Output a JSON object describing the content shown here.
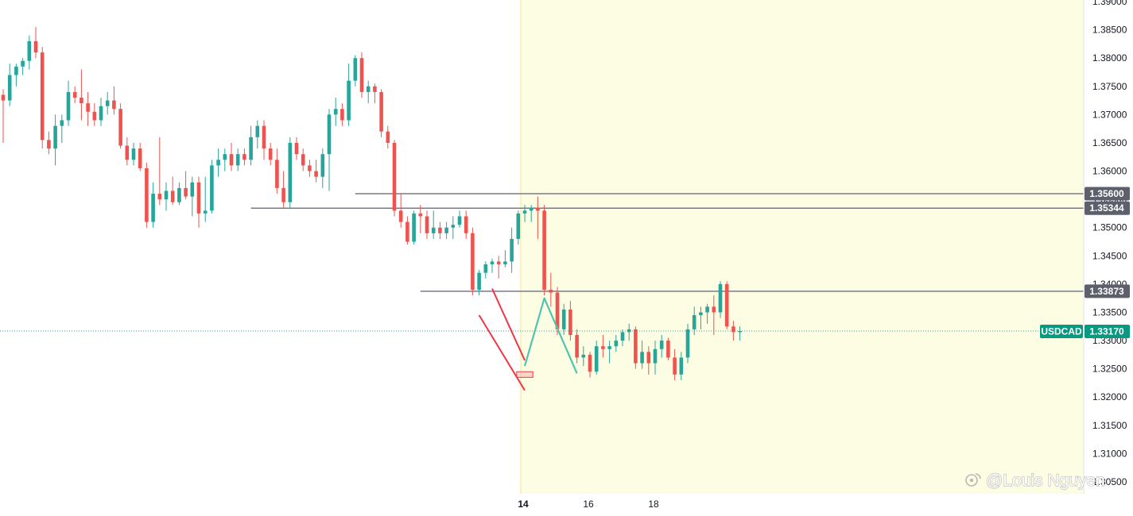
{
  "chart_data": {
    "type": "candlestick",
    "symbol": "USDCAD",
    "last_price": "1.33170",
    "ylim": [
      1.305,
      1.39
    ],
    "price_ticks": [
      "1.39000",
      "1.38500",
      "1.38000",
      "1.37500",
      "1.37000",
      "1.36500",
      "1.36000",
      "1.35500",
      "1.35000",
      "1.34500",
      "1.34000",
      "1.33500",
      "1.33000",
      "1.32500",
      "1.32000",
      "1.31500",
      "1.31000",
      "1.30500"
    ],
    "time_labels": [
      {
        "label": "14",
        "index": 80
      },
      {
        "label": "16",
        "index": 90
      },
      {
        "label": "18",
        "index": 100
      }
    ],
    "levels": [
      {
        "label": "1.35600",
        "value": 1.356,
        "start_index": 54
      },
      {
        "label": "1.35344",
        "value": 1.35344,
        "start_index": 38
      },
      {
        "label": "1.33873",
        "value": 1.33873,
        "start_index": 64
      }
    ],
    "session_start_index": 80,
    "projection_path": [
      {
        "index": 80,
        "value": 1.3255
      },
      {
        "index": 83,
        "value": 1.3375
      },
      {
        "index": 88,
        "value": 1.3242
      }
    ],
    "channel": {
      "upper": [
        {
          "index": 75,
          "value": 1.3392
        },
        {
          "index": 80,
          "value": 1.3265
        }
      ],
      "lower": [
        {
          "index": 73,
          "value": 1.3345
        },
        {
          "index": 80,
          "value": 1.3212
        }
      ]
    },
    "highlight_box": {
      "start_index": 79,
      "end_index": 81,
      "high": 1.3245,
      "low": 1.3235
    },
    "candles": [
      [
        1.3735,
        1.3745,
        1.365,
        1.3725
      ],
      [
        1.3725,
        1.379,
        1.3715,
        1.377
      ],
      [
        1.377,
        1.379,
        1.375,
        1.3785
      ],
      [
        1.3785,
        1.38,
        1.377,
        1.3795
      ],
      [
        1.3795,
        1.384,
        1.378,
        1.383
      ],
      [
        1.383,
        1.3855,
        1.38,
        1.381
      ],
      [
        1.381,
        1.382,
        1.364,
        1.3655
      ],
      [
        1.3655,
        1.367,
        1.363,
        1.364
      ],
      [
        1.364,
        1.37,
        1.361,
        1.368
      ],
      [
        1.368,
        1.37,
        1.365,
        1.369
      ],
      [
        1.369,
        1.376,
        1.368,
        1.374
      ],
      [
        1.374,
        1.375,
        1.372,
        1.373
      ],
      [
        1.373,
        1.378,
        1.369,
        1.372
      ],
      [
        1.372,
        1.374,
        1.368,
        1.3705
      ],
      [
        1.3705,
        1.372,
        1.368,
        1.369
      ],
      [
        1.369,
        1.373,
        1.368,
        1.3715
      ],
      [
        1.3715,
        1.374,
        1.37,
        1.3725
      ],
      [
        1.3725,
        1.375,
        1.37,
        1.371
      ],
      [
        1.371,
        1.372,
        1.364,
        1.3645
      ],
      [
        1.3645,
        1.366,
        1.361,
        1.362
      ],
      [
        1.362,
        1.365,
        1.361,
        1.364
      ],
      [
        1.364,
        1.365,
        1.36,
        1.3605
      ],
      [
        1.3605,
        1.3615,
        1.35,
        1.351
      ],
      [
        1.351,
        1.358,
        1.35,
        1.356
      ],
      [
        1.356,
        1.366,
        1.354,
        1.355
      ],
      [
        1.355,
        1.358,
        1.353,
        1.3565
      ],
      [
        1.3565,
        1.359,
        1.354,
        1.3545
      ],
      [
        1.3545,
        1.358,
        1.354,
        1.357
      ],
      [
        1.357,
        1.36,
        1.355,
        1.3555
      ],
      [
        1.3555,
        1.359,
        1.352,
        1.358
      ],
      [
        1.358,
        1.359,
        1.35,
        1.3525
      ],
      [
        1.3525,
        1.359,
        1.351,
        1.353
      ],
      [
        1.353,
        1.362,
        1.3525,
        1.361
      ],
      [
        1.361,
        1.364,
        1.359,
        1.362
      ],
      [
        1.362,
        1.364,
        1.36,
        1.363
      ],
      [
        1.363,
        1.365,
        1.36,
        1.361
      ],
      [
        1.361,
        1.364,
        1.36,
        1.363
      ],
      [
        1.363,
        1.364,
        1.361,
        1.362
      ],
      [
        1.362,
        1.368,
        1.361,
        1.366
      ],
      [
        1.366,
        1.369,
        1.364,
        1.368
      ],
      [
        1.368,
        1.369,
        1.362,
        1.364
      ],
      [
        1.364,
        1.365,
        1.361,
        1.362
      ],
      [
        1.362,
        1.364,
        1.356,
        1.357
      ],
      [
        1.357,
        1.36,
        1.3535,
        1.3545
      ],
      [
        1.3545,
        1.366,
        1.3535,
        1.365
      ],
      [
        1.365,
        1.366,
        1.362,
        1.363
      ],
      [
        1.363,
        1.364,
        1.36,
        1.361
      ],
      [
        1.361,
        1.362,
        1.359,
        1.36
      ],
      [
        1.36,
        1.362,
        1.358,
        1.359
      ],
      [
        1.359,
        1.364,
        1.357,
        1.363
      ],
      [
        1.363,
        1.371,
        1.3565,
        1.37
      ],
      [
        1.37,
        1.373,
        1.368,
        1.371
      ],
      [
        1.371,
        1.372,
        1.368,
        1.369
      ],
      [
        1.369,
        1.379,
        1.368,
        1.376
      ],
      [
        1.376,
        1.3805,
        1.375,
        1.38
      ],
      [
        1.38,
        1.381,
        1.373,
        1.374
      ],
      [
        1.374,
        1.376,
        1.372,
        1.375
      ],
      [
        1.375,
        1.3755,
        1.372,
        1.374
      ],
      [
        1.374,
        1.3745,
        1.366,
        1.367
      ],
      [
        1.367,
        1.368,
        1.364,
        1.365
      ],
      [
        1.365,
        1.3655,
        1.352,
        1.353
      ],
      [
        1.353,
        1.356,
        1.35,
        1.351
      ],
      [
        1.351,
        1.352,
        1.347,
        1.3475
      ],
      [
        1.3475,
        1.353,
        1.347,
        1.3525
      ],
      [
        1.3525,
        1.354,
        1.349,
        1.352
      ],
      [
        1.352,
        1.353,
        1.348,
        1.349
      ],
      [
        1.349,
        1.353,
        1.348,
        1.35
      ],
      [
        1.35,
        1.351,
        1.348,
        1.349
      ],
      [
        1.349,
        1.351,
        1.348,
        1.35
      ],
      [
        1.35,
        1.352,
        1.348,
        1.3505
      ],
      [
        1.3505,
        1.353,
        1.35,
        1.352
      ],
      [
        1.352,
        1.353,
        1.348,
        1.349
      ],
      [
        1.349,
        1.35,
        1.338,
        1.339
      ],
      [
        1.339,
        1.3425,
        1.338,
        1.342
      ],
      [
        1.342,
        1.344,
        1.341,
        1.3435
      ],
      [
        1.3435,
        1.3445,
        1.342,
        1.344
      ],
      [
        1.344,
        1.345,
        1.341,
        1.3435
      ],
      [
        1.3435,
        1.346,
        1.343,
        1.344
      ],
      [
        1.344,
        1.35,
        1.342,
        1.348
      ],
      [
        1.348,
        1.353,
        1.347,
        1.3525
      ],
      [
        1.3525,
        1.354,
        1.351,
        1.353
      ],
      [
        1.353,
        1.354,
        1.351,
        1.3535
      ],
      [
        1.3535,
        1.3555,
        1.348,
        1.353
      ],
      [
        1.353,
        1.354,
        1.338,
        1.339
      ],
      [
        1.339,
        1.342,
        1.336,
        1.3385
      ],
      [
        1.3385,
        1.3395,
        1.331,
        1.332
      ],
      [
        1.332,
        1.3365,
        1.331,
        1.3355
      ],
      [
        1.3355,
        1.337,
        1.33,
        1.331
      ],
      [
        1.331,
        1.332,
        1.326,
        1.327
      ],
      [
        1.327,
        1.329,
        1.3255,
        1.3275
      ],
      [
        1.3275,
        1.328,
        1.3235,
        1.3245
      ],
      [
        1.3245,
        1.33,
        1.324,
        1.329
      ],
      [
        1.329,
        1.331,
        1.327,
        1.3285
      ],
      [
        1.3285,
        1.33,
        1.326,
        1.329
      ],
      [
        1.329,
        1.331,
        1.328,
        1.33
      ],
      [
        1.33,
        1.332,
        1.329,
        1.3315
      ],
      [
        1.3315,
        1.333,
        1.33,
        1.332
      ],
      [
        1.332,
        1.3325,
        1.325,
        1.326
      ],
      [
        1.326,
        1.33,
        1.325,
        1.328
      ],
      [
        1.328,
        1.329,
        1.324,
        1.326
      ],
      [
        1.326,
        1.33,
        1.324,
        1.3285
      ],
      [
        1.3285,
        1.331,
        1.327,
        1.33
      ],
      [
        1.33,
        1.3305,
        1.3265,
        1.327
      ],
      [
        1.327,
        1.3285,
        1.323,
        1.324
      ],
      [
        1.324,
        1.328,
        1.323,
        1.327
      ],
      [
        1.327,
        1.333,
        1.326,
        1.332
      ],
      [
        1.332,
        1.336,
        1.331,
        1.3345
      ],
      [
        1.3345,
        1.336,
        1.332,
        1.335
      ],
      [
        1.335,
        1.3365,
        1.333,
        1.336
      ],
      [
        1.336,
        1.338,
        1.331,
        1.335
      ],
      [
        1.335,
        1.3405,
        1.334,
        1.34
      ],
      [
        1.34,
        1.3405,
        1.332,
        1.3325
      ],
      [
        1.3325,
        1.3335,
        1.33,
        1.3315
      ],
      [
        1.3315,
        1.3325,
        1.33,
        1.3317
      ]
    ]
  },
  "watermark": {
    "icon": "weibo-logo-icon",
    "text": "@Louis Nguyen"
  },
  "colors": {
    "up": "#26a69a",
    "down": "#ef5350",
    "session_bg": "#fdfde3",
    "session_line": "#f0e68c",
    "level_line": "#787b86",
    "level_tag": "#5d606b",
    "price_tag": "#089981",
    "price_line": "#26a69a",
    "channel": "#f23645",
    "projection": "#4fc4b0",
    "highlight": "#f7a6a6"
  }
}
